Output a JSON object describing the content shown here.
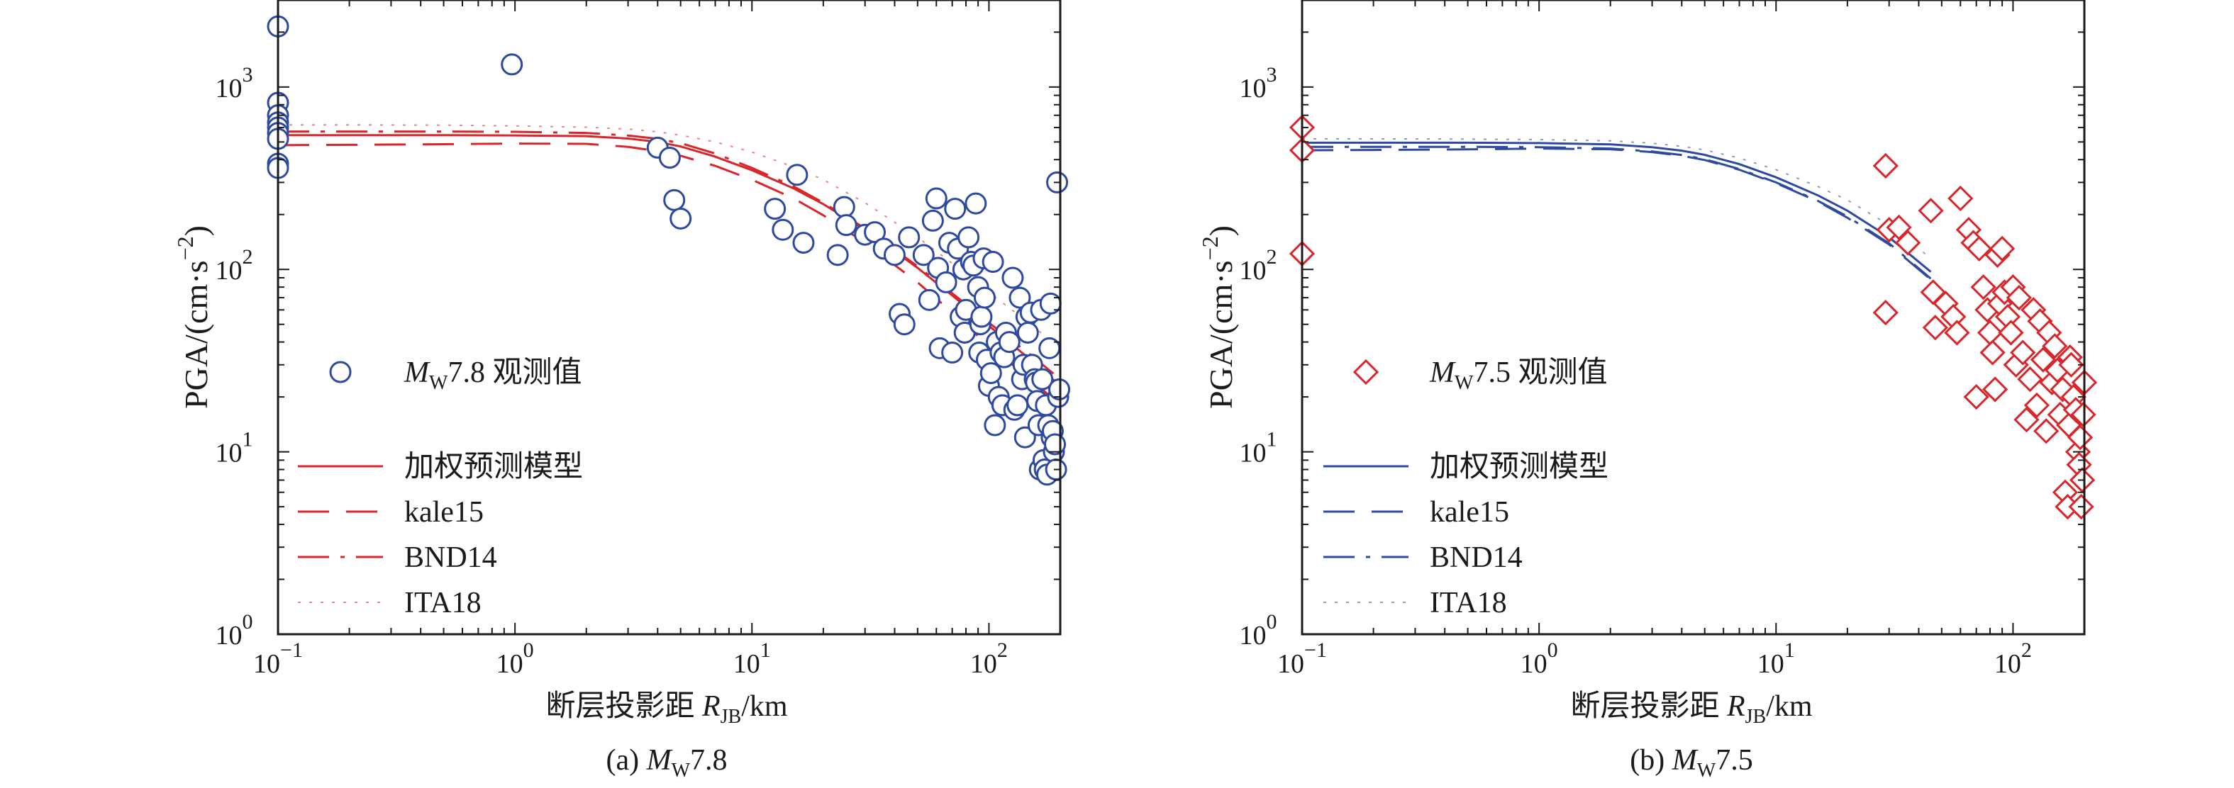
{
  "chart_data": [
    {
      "type": "scatter",
      "panel": "a",
      "caption": "(a) Mw7.8",
      "xlabel": "断层投影距 RJB/km",
      "ylabel": "PGA/(cm·s−2)",
      "xscale": "log",
      "yscale": "log",
      "xlim": [
        0.1,
        200
      ],
      "ylim": [
        1,
        3000
      ],
      "x_ticks": [
        "10−1",
        "100",
        "101",
        "102"
      ],
      "y_ticks": [
        "100",
        "101",
        "102",
        "103"
      ],
      "legend_position": "center-left",
      "colors": {
        "observed": "#2e4aa0",
        "model": "#d8262b"
      },
      "observations": {
        "name": "Mw7.8 观测值",
        "marker": "circle",
        "points": [
          [
            0.1,
            2150
          ],
          [
            0.1,
            820
          ],
          [
            0.1,
            700
          ],
          [
            0.1,
            640
          ],
          [
            0.1,
            600
          ],
          [
            0.1,
            560
          ],
          [
            0.1,
            520
          ],
          [
            0.1,
            380
          ],
          [
            0.1,
            360
          ],
          [
            0.97,
            1330
          ],
          [
            4.0,
            465
          ],
          [
            4.5,
            410
          ],
          [
            4.7,
            240
          ],
          [
            5.0,
            190
          ],
          [
            12.5,
            215
          ],
          [
            13.5,
            165
          ],
          [
            15.5,
            330
          ],
          [
            16.5,
            140
          ],
          [
            23,
            120
          ],
          [
            24.5,
            220
          ],
          [
            25,
            175
          ],
          [
            30,
            155
          ],
          [
            33,
            160
          ],
          [
            36,
            130
          ],
          [
            40,
            120
          ],
          [
            42,
            57
          ],
          [
            44,
            50
          ],
          [
            46,
            150
          ],
          [
            53,
            120
          ],
          [
            56,
            68
          ],
          [
            58,
            185
          ],
          [
            60,
            245
          ],
          [
            61,
            102
          ],
          [
            62,
            37
          ],
          [
            66,
            85
          ],
          [
            68,
            140
          ],
          [
            70,
            35
          ],
          [
            72,
            215
          ],
          [
            74,
            130
          ],
          [
            76,
            55
          ],
          [
            78,
            100
          ],
          [
            79,
            45
          ],
          [
            80,
            60
          ],
          [
            82,
            150
          ],
          [
            84,
            110
          ],
          [
            86,
            105
          ],
          [
            88,
            230
          ],
          [
            90,
            80
          ],
          [
            91,
            35
          ],
          [
            92,
            50
          ],
          [
            93,
            55
          ],
          [
            95,
            115
          ],
          [
            96,
            70
          ],
          [
            98,
            32
          ],
          [
            100,
            23
          ],
          [
            102,
            27
          ],
          [
            104,
            110
          ],
          [
            106,
            14
          ],
          [
            108,
            40
          ],
          [
            110,
            20
          ],
          [
            112,
            35
          ],
          [
            114,
            18
          ],
          [
            116,
            33
          ],
          [
            118,
            45
          ],
          [
            122,
            40
          ],
          [
            126,
            90
          ],
          [
            128,
            17
          ],
          [
            132,
            18
          ],
          [
            135,
            70
          ],
          [
            138,
            25
          ],
          [
            140,
            30
          ],
          [
            142,
            12
          ],
          [
            144,
            55
          ],
          [
            146,
            45
          ],
          [
            150,
            58
          ],
          [
            152,
            30
          ],
          [
            156,
            25
          ],
          [
            158,
            24
          ],
          [
            160,
            19
          ],
          [
            162,
            14
          ],
          [
            164,
            8
          ],
          [
            166,
            60
          ],
          [
            168,
            25
          ],
          [
            170,
            9
          ],
          [
            172,
            8
          ],
          [
            174,
            18
          ],
          [
            176,
            7.5
          ],
          [
            178,
            14
          ],
          [
            180,
            37
          ],
          [
            182,
            65
          ],
          [
            184,
            12
          ],
          [
            186,
            13
          ],
          [
            188,
            10
          ],
          [
            190,
            11
          ],
          [
            192,
            8
          ],
          [
            194,
            300
          ],
          [
            196,
            20
          ],
          [
            198,
            22
          ]
        ]
      },
      "series": [
        {
          "name": "加权预测模型",
          "style": "solid",
          "x": [
            0.1,
            0.2,
            0.5,
            1,
            2,
            3,
            4,
            5,
            7,
            10,
            15,
            20,
            30,
            50,
            70,
            100,
            150,
            200
          ],
          "y": [
            545,
            545,
            545,
            543,
            538,
            522,
            500,
            472,
            415,
            350,
            278,
            228,
            165,
            102,
            72,
            49,
            32,
            23
          ]
        },
        {
          "name": "kale15",
          "style": "long-dash",
          "x": [
            0.1,
            0.2,
            0.5,
            1,
            2,
            3,
            4,
            5,
            7,
            10,
            15,
            20,
            30,
            50,
            70,
            100,
            150,
            200
          ],
          "y": [
            480,
            482,
            486,
            490,
            488,
            470,
            445,
            420,
            370,
            310,
            245,
            198,
            140,
            85,
            58,
            38,
            25,
            18
          ]
        },
        {
          "name": "BND14",
          "style": "dash-dot",
          "x": [
            0.1,
            0.2,
            0.5,
            1,
            2,
            3,
            4,
            5,
            7,
            10,
            15,
            20,
            30,
            50,
            70,
            100,
            150,
            200
          ],
          "y": [
            570,
            570,
            570,
            568,
            560,
            542,
            520,
            492,
            432,
            360,
            285,
            232,
            168,
            104,
            74,
            51,
            34,
            25
          ]
        },
        {
          "name": "ITA18",
          "style": "dotted",
          "x": [
            0.1,
            0.2,
            0.5,
            1,
            2,
            3,
            4,
            5,
            7,
            10,
            15,
            20,
            30,
            50,
            70,
            100,
            150,
            200
          ],
          "y": [
            620,
            620,
            618,
            612,
            602,
            588,
            568,
            545,
            500,
            440,
            365,
            310,
            232,
            150,
            108,
            75,
            50,
            37
          ]
        }
      ]
    },
    {
      "type": "scatter",
      "panel": "b",
      "caption": "(b) Mw7.5",
      "xlabel": "断层投影距 RJB/km",
      "ylabel": "PGA/(cm·s−2)",
      "xscale": "log",
      "yscale": "log",
      "xlim": [
        0.1,
        200
      ],
      "ylim": [
        1,
        3000
      ],
      "x_ticks": [
        "10−1",
        "100",
        "101",
        "102"
      ],
      "y_ticks": [
        "100",
        "101",
        "102",
        "103"
      ],
      "legend_position": "center-left",
      "colors": {
        "observed": "#d8262b",
        "model": "#2e4aa0"
      },
      "observations": {
        "name": "Mw7.5 观测值",
        "marker": "diamond",
        "points": [
          [
            0.1,
            600
          ],
          [
            0.1,
            450
          ],
          [
            0.1,
            122
          ],
          [
            29,
            370
          ],
          [
            29,
            58
          ],
          [
            30,
            165
          ],
          [
            33,
            170
          ],
          [
            36,
            140
          ],
          [
            45,
            210
          ],
          [
            46,
            75
          ],
          [
            47,
            48
          ],
          [
            52,
            65
          ],
          [
            56,
            55
          ],
          [
            58,
            45
          ],
          [
            60,
            245
          ],
          [
            65,
            165
          ],
          [
            68,
            140
          ],
          [
            70,
            20
          ],
          [
            72,
            130
          ],
          [
            75,
            80
          ],
          [
            78,
            60
          ],
          [
            80,
            45
          ],
          [
            82,
            35
          ],
          [
            84,
            22
          ],
          [
            86,
            120
          ],
          [
            88,
            65
          ],
          [
            90,
            130
          ],
          [
            92,
            75
          ],
          [
            95,
            55
          ],
          [
            98,
            45
          ],
          [
            100,
            80
          ],
          [
            103,
            30
          ],
          [
            106,
            70
          ],
          [
            110,
            35
          ],
          [
            114,
            15
          ],
          [
            118,
            25
          ],
          [
            122,
            60
          ],
          [
            126,
            18
          ],
          [
            130,
            52
          ],
          [
            134,
            32
          ],
          [
            138,
            13
          ],
          [
            142,
            45
          ],
          [
            146,
            24
          ],
          [
            150,
            38
          ],
          [
            154,
            28
          ],
          [
            158,
            16
          ],
          [
            162,
            22
          ],
          [
            166,
            6
          ],
          [
            170,
            5
          ],
          [
            172,
            14
          ],
          [
            174,
            33
          ],
          [
            176,
            30
          ],
          [
            180,
            20
          ],
          [
            184,
            17
          ],
          [
            188,
            10
          ],
          [
            190,
            8.5
          ],
          [
            192,
            12
          ],
          [
            194,
            5
          ],
          [
            196,
            7
          ],
          [
            198,
            16
          ],
          [
            200,
            24
          ]
        ]
      },
      "series": [
        {
          "name": "加权预测模型",
          "style": "solid",
          "x": [
            0.1,
            0.2,
            0.5,
            1,
            2,
            3,
            4,
            5,
            7,
            10,
            15,
            20,
            30,
            45
          ],
          "y": [
            495,
            495,
            495,
            493,
            485,
            468,
            448,
            425,
            378,
            320,
            255,
            210,
            150,
            97
          ]
        },
        {
          "name": "kale15",
          "style": "long-dash",
          "x": [
            0.1,
            0.2,
            0.5,
            1,
            2,
            3,
            4,
            5,
            7,
            10,
            15,
            20,
            30,
            45
          ],
          "y": [
            450,
            452,
            455,
            460,
            456,
            440,
            420,
            398,
            352,
            297,
            236,
            192,
            137,
            88
          ]
        },
        {
          "name": "BND14",
          "style": "dash-dot",
          "x": [
            0.1,
            0.2,
            0.5,
            1,
            2,
            3,
            4,
            5,
            7,
            10,
            15,
            20,
            30,
            45
          ],
          "y": [
            470,
            470,
            470,
            468,
            460,
            443,
            424,
            402,
            355,
            300,
            238,
            195,
            139,
            89
          ]
        },
        {
          "name": "ITA18",
          "style": "dotted",
          "x": [
            0.1,
            0.2,
            0.5,
            1,
            2,
            3,
            4,
            5,
            7,
            10,
            15,
            20,
            30,
            45
          ],
          "y": [
            520,
            520,
            518,
            515,
            507,
            492,
            473,
            452,
            408,
            352,
            285,
            240,
            175,
            115
          ]
        }
      ]
    }
  ]
}
